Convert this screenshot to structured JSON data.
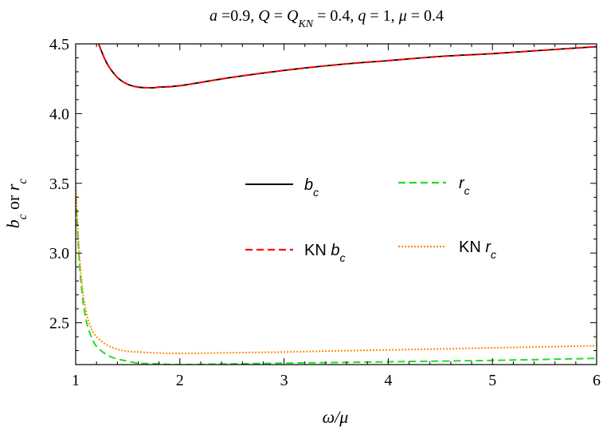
{
  "chart_data": {
    "type": "line",
    "title": {
      "segments": [
        {
          "t": "a",
          "style": "italic"
        },
        {
          "t": " =0.9, "
        },
        {
          "t": "Q",
          "style": "italic"
        },
        {
          "t": " =  "
        },
        {
          "t": "Q",
          "style": "italic"
        },
        {
          "t": "KN",
          "style": "italic",
          "sub": true
        },
        {
          "t": " = 0.4,  "
        },
        {
          "t": "q",
          "style": "italic"
        },
        {
          "t": " = 1, "
        },
        {
          "t": "μ",
          "style": "italic"
        },
        {
          "t": " = 0.4"
        }
      ]
    },
    "xlabel": {
      "segments": [
        {
          "t": "ω/μ",
          "style": "italic"
        }
      ]
    },
    "ylabel": {
      "segments": [
        {
          "t": "b",
          "style": "italic"
        },
        {
          "t": "c",
          "style": "italic",
          "sub": true
        },
        {
          "t": " or "
        },
        {
          "t": "r",
          "style": "italic"
        },
        {
          "t": "c",
          "style": "italic",
          "sub": true
        }
      ]
    },
    "xlim": [
      1,
      6
    ],
    "ylim": [
      2.2,
      4.5
    ],
    "xticks": [
      "1",
      "2",
      "3",
      "4",
      "5",
      "6"
    ],
    "yticks": [
      "2.5",
      "3.0",
      "3.5",
      "4.0",
      "4.5"
    ],
    "grid": false,
    "legend_position": "center",
    "series": [
      {
        "name": {
          "segments": [
            {
              "t": "b",
              "style": "italic"
            },
            {
              "t": "c",
              "style": "italic",
              "sub": true
            }
          ]
        },
        "color": "#000000",
        "dash": "solid",
        "legend_slot": "left-top",
        "x": [
          1.22,
          1.3,
          1.4,
          1.5,
          1.6,
          1.7,
          1.75,
          1.8,
          2.0,
          2.5,
          3.0,
          3.5,
          4.0,
          4.5,
          5.0,
          5.5,
          6.0
        ],
        "y": [
          4.5,
          4.36,
          4.26,
          4.21,
          4.19,
          4.185,
          4.185,
          4.19,
          4.2,
          4.26,
          4.31,
          4.35,
          4.38,
          4.41,
          4.43,
          4.455,
          4.48
        ]
      },
      {
        "name": {
          "segments": [
            {
              "t": "KN "
            },
            {
              "t": "b",
              "style": "italic"
            },
            {
              "t": "c",
              "style": "italic",
              "sub": true
            }
          ]
        },
        "color": "#ff0000",
        "dash": "dashed",
        "legend_slot": "left-bottom",
        "x": [
          1.22,
          1.3,
          1.4,
          1.5,
          1.6,
          1.7,
          1.75,
          1.8,
          2.0,
          2.5,
          3.0,
          3.5,
          4.0,
          4.5,
          5.0,
          5.5,
          6.0
        ],
        "y": [
          4.5,
          4.36,
          4.26,
          4.21,
          4.19,
          4.185,
          4.185,
          4.19,
          4.2,
          4.26,
          4.31,
          4.35,
          4.38,
          4.41,
          4.43,
          4.455,
          4.48
        ]
      },
      {
        "name": {
          "segments": [
            {
              "t": "r",
              "style": "italic"
            },
            {
              "t": "c",
              "style": "italic",
              "sub": true
            }
          ]
        },
        "color": "#22dd22",
        "dash": "dashed",
        "legend_slot": "right-top",
        "x": [
          1.0,
          1.03,
          1.06,
          1.1,
          1.15,
          1.2,
          1.3,
          1.4,
          1.5,
          1.6,
          1.8,
          2.0,
          2.5,
          3.0,
          3.5,
          4.0,
          4.5,
          5.0,
          5.5,
          6.0
        ],
        "y": [
          3.4,
          3.0,
          2.72,
          2.52,
          2.4,
          2.33,
          2.27,
          2.24,
          2.225,
          2.21,
          2.205,
          2.2,
          2.205,
          2.21,
          2.215,
          2.22,
          2.225,
          2.23,
          2.237,
          2.245
        ]
      },
      {
        "name": {
          "segments": [
            {
              "t": "KN "
            },
            {
              "t": "r",
              "style": "italic"
            },
            {
              "t": "c",
              "style": "italic",
              "sub": true
            }
          ]
        },
        "color": "#ff8c00",
        "dash": "dotted",
        "legend_slot": "right-bottom",
        "x": [
          1.0,
          1.03,
          1.06,
          1.1,
          1.15,
          1.2,
          1.3,
          1.4,
          1.5,
          1.6,
          1.8,
          2.0,
          2.5,
          3.0,
          3.5,
          4.0,
          4.5,
          5.0,
          5.5,
          6.0
        ],
        "y": [
          3.5,
          3.05,
          2.78,
          2.58,
          2.46,
          2.4,
          2.34,
          2.31,
          2.295,
          2.29,
          2.283,
          2.28,
          2.285,
          2.29,
          2.298,
          2.305,
          2.312,
          2.32,
          2.327,
          2.335
        ]
      }
    ]
  }
}
